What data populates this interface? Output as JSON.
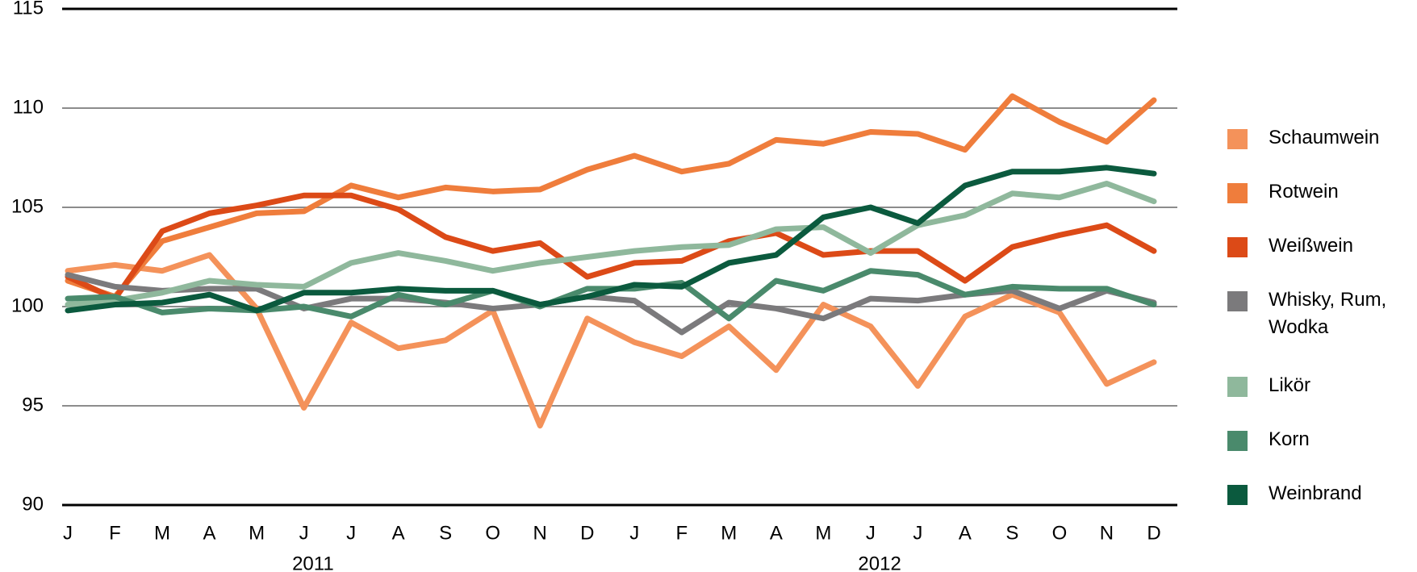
{
  "chart_data": {
    "type": "line",
    "categories": [
      "J",
      "F",
      "M",
      "A",
      "M",
      "J",
      "J",
      "A",
      "S",
      "O",
      "N",
      "D",
      "J",
      "F",
      "M",
      "A",
      "M",
      "J",
      "J",
      "A",
      "S",
      "O",
      "N",
      "D"
    ],
    "years": [
      "2011",
      "2012"
    ],
    "ylim": [
      90,
      115
    ],
    "yticks": [
      90,
      95,
      100,
      105,
      110,
      115
    ],
    "grid": true,
    "legend": "right",
    "series": [
      {
        "name": "Schaumwein",
        "color": "#f4925a",
        "values": [
          101.8,
          102.1,
          101.8,
          102.6,
          99.9,
          94.9,
          99.2,
          97.9,
          98.3,
          99.8,
          94,
          99.4,
          98.2,
          97.5,
          99,
          96.8,
          100.1,
          99,
          96,
          99.5,
          100.6,
          99.7,
          96.1,
          97.2
        ]
      },
      {
        "name": "Rotwein",
        "color": "#ef7d3c",
        "values": [
          101.3,
          100.5,
          103.3,
          104,
          104.7,
          104.8,
          106.1,
          105.5,
          106,
          105.8,
          105.9,
          106.9,
          107.6,
          106.8,
          107.2,
          108.4,
          108.2,
          108.8,
          108.7,
          107.9,
          110.6,
          109.3,
          108.3,
          110.4
        ]
      },
      {
        "name": "Weißwein",
        "color": "#dc4a17",
        "values": [
          101.5,
          100.4,
          103.8,
          104.7,
          105.1,
          105.6,
          105.6,
          104.9,
          103.5,
          102.8,
          103.2,
          101.5,
          102.2,
          102.3,
          103.3,
          103.7,
          102.6,
          102.8,
          102.8,
          101.3,
          103,
          103.6,
          104.1,
          102.8
        ]
      },
      {
        "name": "Whisky, Rum, Wodka",
        "color": "#7b7a7c",
        "values": [
          101.6,
          101,
          100.8,
          100.9,
          100.9,
          99.9,
          100.4,
          100.4,
          100.2,
          99.9,
          100.1,
          100.5,
          100.3,
          98.7,
          100.2,
          99.9,
          99.4,
          100.4,
          100.3,
          100.6,
          100.8,
          99.9,
          100.8,
          100.2
        ]
      },
      {
        "name": "Likör",
        "color": "#8fb89c",
        "values": [
          100.1,
          100.3,
          100.7,
          101.3,
          101.1,
          101,
          102.2,
          102.7,
          102.3,
          101.8,
          102.2,
          102.5,
          102.8,
          103,
          103.1,
          103.9,
          104,
          102.7,
          104.1,
          104.6,
          105.7,
          105.5,
          106.2,
          105.3
        ]
      },
      {
        "name": "Korn",
        "color": "#4a8a6c",
        "values": [
          100.4,
          100.5,
          99.7,
          99.9,
          99.8,
          100,
          99.5,
          100.6,
          100.1,
          100.8,
          100,
          100.9,
          100.9,
          101.2,
          99.4,
          101.3,
          100.8,
          101.8,
          101.6,
          100.6,
          101,
          100.9,
          100.9,
          100.1
        ]
      },
      {
        "name": "Weinbrand",
        "color": "#0b5a3e",
        "values": [
          99.8,
          100.1,
          100.2,
          100.6,
          99.8,
          100.7,
          100.7,
          100.9,
          100.8,
          100.8,
          100.1,
          100.5,
          101.1,
          101,
          102.2,
          102.6,
          104.5,
          105,
          104.2,
          106.1,
          106.8,
          106.8,
          107,
          106.7
        ]
      }
    ]
  }
}
